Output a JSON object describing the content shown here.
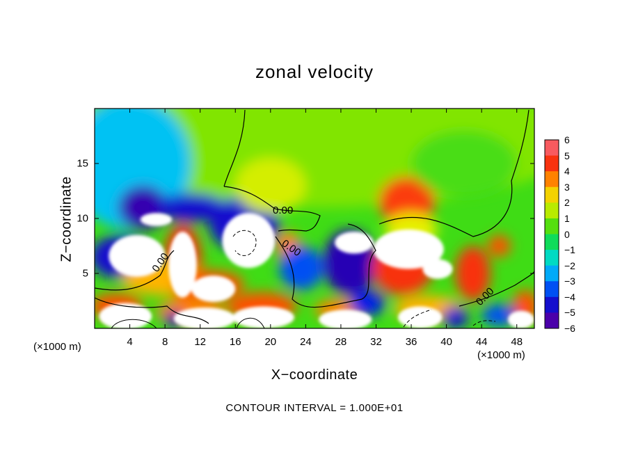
{
  "chart_data": {
    "type": "heatmap",
    "title": "zonal velocity",
    "xlabel": "X−coordinate",
    "ylabel": "Z−coordinate",
    "x_unit": "(×1000 m)",
    "y_unit": "(×1000 m)",
    "xlim": [
      0,
      50
    ],
    "ylim": [
      0,
      20
    ],
    "x_ticks": [
      4,
      8,
      12,
      16,
      20,
      24,
      28,
      32,
      36,
      40,
      44,
      48
    ],
    "y_ticks": [
      5,
      10,
      15
    ],
    "colorbar": {
      "min": -6,
      "max": 6,
      "labels": [
        "6",
        "5",
        "4",
        "3",
        "2",
        "1",
        "0",
        "−1",
        "−2",
        "−3",
        "−4",
        "−5",
        "−6"
      ]
    },
    "contour_labels": [
      "0.00",
      "0.00",
      "0.00",
      "0.00"
    ],
    "footer": "CONTOUR INTERVAL = 1.000E+01",
    "field_blobs": [
      {
        "x": 25,
        "z": 17,
        "v": 0.9,
        "rx": 30,
        "rz": 6
      },
      {
        "x": 4,
        "z": 15,
        "v": -2.2,
        "rx": 7,
        "rz": 6
      },
      {
        "x": 5.5,
        "z": 11,
        "v": -5.2,
        "rx": 2.8,
        "rz": 2
      },
      {
        "x": 11,
        "z": 11,
        "v": -4.5,
        "rx": 4,
        "rz": 1.3
      },
      {
        "x": 17,
        "z": 9.5,
        "v": -4.5,
        "rx": 4,
        "rz": 2.5
      },
      {
        "x": 20,
        "z": 13,
        "v": 1.8,
        "rx": 4,
        "rz": 2.5
      },
      {
        "x": 35.5,
        "z": 11.5,
        "v": 4.3,
        "rx": 3.2,
        "rz": 2.3
      },
      {
        "x": 42,
        "z": 15,
        "v": 0.4,
        "rx": 6,
        "rz": 3
      },
      {
        "x": 3,
        "z": 6.5,
        "v": -4.5,
        "rx": 3.5,
        "rz": 2
      },
      {
        "x": 10,
        "z": 6,
        "v": 4.5,
        "rx": 2.2,
        "rz": 3.5
      },
      {
        "x": 8,
        "z": 4.5,
        "v": 3,
        "rx": 5,
        "rz": 1.5
      },
      {
        "x": 13,
        "z": 4,
        "v": 4,
        "rx": 4,
        "rz": 1.3
      },
      {
        "x": 22,
        "z": 7.5,
        "v": 3.5,
        "rx": 1.4,
        "rz": 1.3
      },
      {
        "x": 23.5,
        "z": 5.5,
        "v": -3.5,
        "rx": 2.5,
        "rz": 2
      },
      {
        "x": 29,
        "z": 6,
        "v": -5,
        "rx": 3,
        "rz": 3
      },
      {
        "x": 35,
        "z": 5.5,
        "v": 4.5,
        "rx": 3.5,
        "rz": 2.5
      },
      {
        "x": 43,
        "z": 5,
        "v": 4.5,
        "rx": 2,
        "rz": 2.5
      },
      {
        "x": 46,
        "z": 7.5,
        "v": 4,
        "rx": 1.3,
        "rz": 1
      },
      {
        "x": 36,
        "z": 9,
        "v": 2,
        "rx": 3,
        "rz": 1.5
      },
      {
        "x": 2.5,
        "z": 2,
        "v": 4,
        "rx": 3,
        "rz": 1.2
      },
      {
        "x": 11,
        "z": 1.5,
        "v": 3.5,
        "rx": 4,
        "rz": 1.2
      },
      {
        "x": 19,
        "z": 2,
        "v": 4,
        "rx": 4,
        "rz": 1.3
      },
      {
        "x": 28,
        "z": 1.7,
        "v": 3.5,
        "rx": 3,
        "rz": 1
      },
      {
        "x": 38,
        "z": 1.8,
        "v": 3,
        "rx": 4,
        "rz": 1.2
      },
      {
        "x": 49,
        "z": 2,
        "v": 4,
        "rx": 1.5,
        "rz": 1.5
      },
      {
        "x": 31,
        "z": 2.3,
        "v": -4,
        "rx": 2,
        "rz": 1.2
      },
      {
        "x": 9,
        "z": 0.8,
        "v": -5,
        "rx": 1,
        "rz": 0.8
      },
      {
        "x": 41,
        "z": 1,
        "v": -4.5,
        "rx": 1.5,
        "rz": 1
      },
      {
        "x": 46,
        "z": 1.2,
        "v": -3.5,
        "rx": 2,
        "rz": 1
      }
    ],
    "saturated_regions": [
      {
        "x": 7,
        "z": 9.9,
        "rx": 1.8,
        "rz": 0.6
      },
      {
        "x": 4.8,
        "z": 6.6,
        "rx": 3.2,
        "rz": 1.9
      },
      {
        "x": 10,
        "z": 5.8,
        "rx": 1.6,
        "rz": 3.0
      },
      {
        "x": 13.5,
        "z": 3.6,
        "rx": 2.5,
        "rz": 1.2
      },
      {
        "x": 17.5,
        "z": 8.0,
        "rx": 3.0,
        "rz": 2.5
      },
      {
        "x": 29.5,
        "z": 7.8,
        "rx": 2.2,
        "rz": 1.0
      },
      {
        "x": 35.7,
        "z": 7.2,
        "rx": 4.0,
        "rz": 1.8
      },
      {
        "x": 39.0,
        "z": 5.4,
        "rx": 1.7,
        "rz": 0.9
      },
      {
        "x": 3.5,
        "z": 1.1,
        "rx": 3.0,
        "rz": 1.2
      },
      {
        "x": 12.5,
        "z": 0.9,
        "rx": 3.5,
        "rz": 1.0
      },
      {
        "x": 19.2,
        "z": 1.0,
        "rx": 3.5,
        "rz": 1.0
      },
      {
        "x": 28.5,
        "z": 0.8,
        "rx": 3.0,
        "rz": 0.9
      },
      {
        "x": 37.0,
        "z": 1.0,
        "rx": 2.5,
        "rz": 1.0
      },
      {
        "x": 48.5,
        "z": 0.8,
        "rx": 1.5,
        "rz": 0.8
      }
    ]
  }
}
